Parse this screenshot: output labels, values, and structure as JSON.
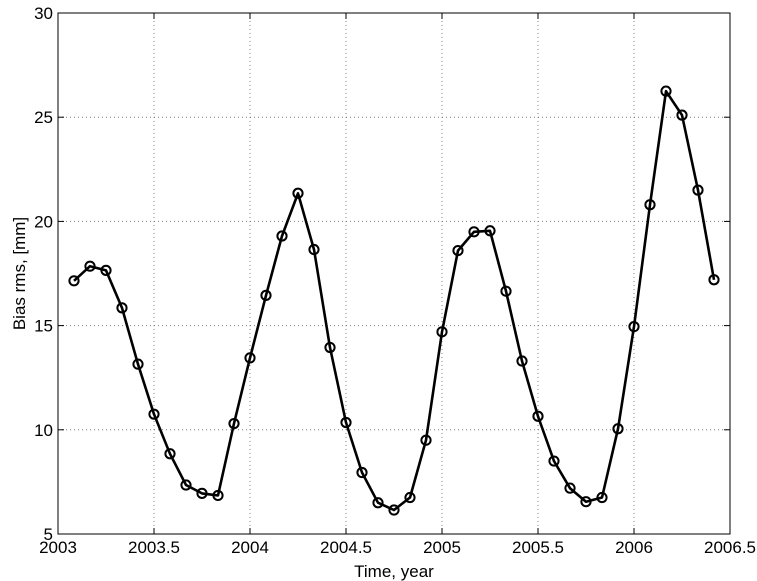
{
  "chart_data": {
    "type": "line",
    "title": "",
    "xlabel": "Time, year",
    "ylabel": "Bias rms, [mm]",
    "xlim": [
      2003,
      2006.5
    ],
    "ylim": [
      5,
      30
    ],
    "xticks": [
      2003,
      2003.5,
      2004,
      2004.5,
      2005,
      2005.5,
      2006,
      2006.5
    ],
    "xtick_labels": [
      "2003",
      "2003.5",
      "2004",
      "2004.5",
      "2005",
      "2005.5",
      "2006",
      "2006.5"
    ],
    "yticks": [
      5,
      10,
      15,
      20,
      25,
      30
    ],
    "ytick_labels": [
      "5",
      "10",
      "15",
      "20",
      "25",
      "30"
    ],
    "grid": true,
    "marker": "circle",
    "line_color": "#000000",
    "series": [
      {
        "x": [
          2003.0833,
          2003.1667,
          2003.25,
          2003.3333,
          2003.4167,
          2003.5,
          2003.5833,
          2003.6667,
          2003.75,
          2003.8333,
          2003.9167,
          2004.0,
          2004.0833,
          2004.1667,
          2004.25,
          2004.3333,
          2004.4167,
          2004.5,
          2004.5833,
          2004.6667,
          2004.75,
          2004.8333,
          2004.9167,
          2005.0,
          2005.0833,
          2005.1667,
          2005.25,
          2005.3333,
          2005.4167,
          2005.5,
          2005.5833,
          2005.6667,
          2005.75,
          2005.8333,
          2005.9167,
          2006.0,
          2006.0833,
          2006.1667,
          2006.25,
          2006.3333,
          2006.4167
        ],
        "y": [
          17.15,
          17.85,
          17.65,
          15.85,
          13.15,
          10.75,
          8.85,
          7.35,
          6.95,
          6.85,
          10.3,
          13.45,
          16.45,
          19.3,
          21.35,
          18.65,
          13.95,
          10.35,
          7.95,
          6.5,
          6.15,
          6.75,
          9.5,
          14.7,
          18.6,
          19.5,
          19.55,
          16.65,
          13.3,
          10.65,
          8.5,
          7.2,
          6.55,
          6.75,
          10.05,
          14.95,
          20.8,
          26.25,
          25.1,
          21.5,
          17.2
        ]
      }
    ]
  }
}
